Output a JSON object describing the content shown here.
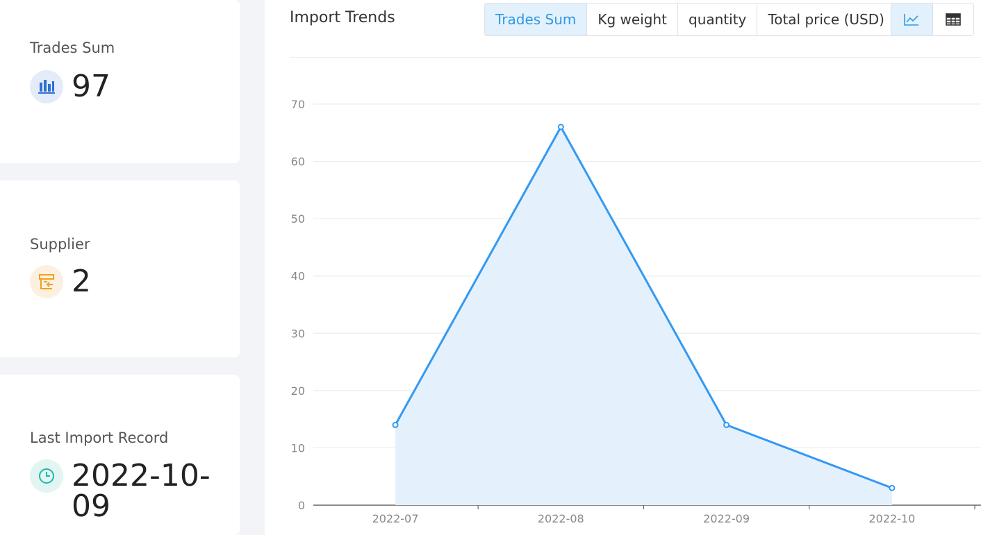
{
  "cards": [
    {
      "label": "Trades Sum",
      "value": "97",
      "icon": "bar-chart-icon",
      "color": "#2f6fd6"
    },
    {
      "label": "Supplier",
      "value": "2",
      "icon": "store-icon",
      "color": "#f0a020"
    },
    {
      "label": "Last Import Record",
      "value": "2022-10-09",
      "icon": "clock-icon",
      "color": "#1fb8a8"
    }
  ],
  "panel": {
    "title": "Import Trends",
    "tabs": [
      {
        "label": "Trades Sum",
        "active": true
      },
      {
        "label": "Kg weight",
        "active": false
      },
      {
        "label": "quantity",
        "active": false
      },
      {
        "label": "Total price (USD)",
        "active": false
      }
    ],
    "view_toggle": [
      {
        "icon": "line-chart-icon",
        "active": true
      },
      {
        "icon": "table-icon",
        "active": false
      }
    ]
  },
  "chart_data": {
    "type": "area",
    "categories": [
      "2022-07",
      "2022-08",
      "2022-09",
      "2022-10"
    ],
    "series": [
      {
        "values": [
          14,
          66,
          14,
          3
        ]
      }
    ],
    "ylim": [
      0,
      70
    ],
    "yticks": [
      0,
      10,
      20,
      30,
      40,
      50,
      60,
      70
    ],
    "grid": true,
    "line_color": "#3399f3",
    "fill_color": "#e4f1fd"
  }
}
